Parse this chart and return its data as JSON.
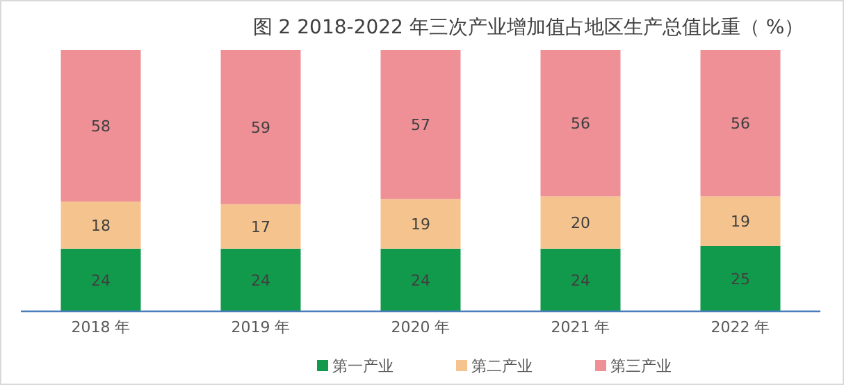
{
  "chart_data": {
    "type": "bar",
    "stacked": true,
    "title": "图 2  2018-2022 年三次产业增加值占地区生产总值比重（ %）",
    "categories": [
      "2018 年",
      "2019 年",
      "2020 年",
      "2021 年",
      "2022 年"
    ],
    "series": [
      {
        "name": "第一产业",
        "color": "#129a4c",
        "values": [
          24,
          24,
          24,
          24,
          25
        ]
      },
      {
        "name": "第二产业",
        "color": "#f5c48e",
        "values": [
          18,
          17,
          19,
          20,
          19
        ]
      },
      {
        "name": "第三产业",
        "color": "#ee9096",
        "values": [
          58,
          59,
          57,
          56,
          56
        ]
      }
    ],
    "data_labels": true,
    "legend": "bottom",
    "grid": false
  }
}
